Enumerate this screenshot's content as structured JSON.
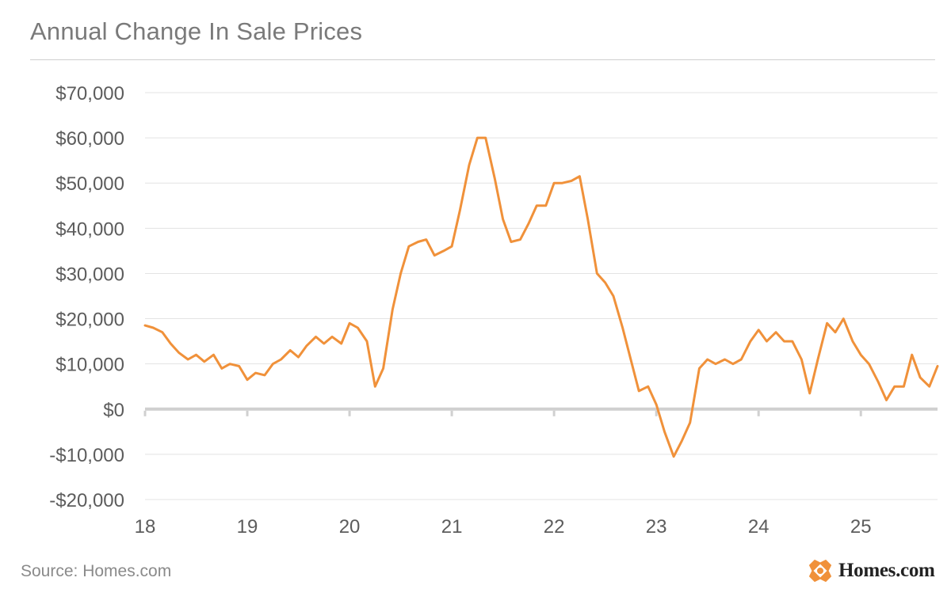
{
  "header": {
    "title": "Annual Change In Sale Prices"
  },
  "footer": {
    "source": "Source: Homes.com",
    "brand": "Homes.com"
  },
  "colors": {
    "line": "#f0913a",
    "grid": "#e3e3e3",
    "zero_line": "#d0d0d0",
    "text": "#5c5c5c",
    "logo": "#f0913a"
  },
  "icons": {
    "brand_logo": "homes-logo-icon"
  },
  "chart_data": {
    "type": "line",
    "title": "Annual Change In Sale Prices",
    "xlabel": "",
    "ylabel": "",
    "xlim": [
      18,
      25.75
    ],
    "ylim": [
      -20000,
      70000
    ],
    "grid": true,
    "x_tick_values": [
      18,
      19,
      20,
      21,
      22,
      23,
      24,
      25
    ],
    "x_tick_labels": [
      "18",
      "19",
      "20",
      "21",
      "22",
      "23",
      "24",
      "25"
    ],
    "y_tick_values": [
      70000,
      60000,
      50000,
      40000,
      30000,
      20000,
      10000,
      0,
      -10000,
      -20000
    ],
    "y_tick_labels": [
      "$70,000",
      "$60,000",
      "$50,000",
      "$40,000",
      "$30,000",
      "$20,000",
      "$10,000",
      "$0",
      "-$10,000",
      "-$20,000"
    ],
    "series": [
      {
        "name": "Annual change in sale price",
        "x": [
          18.0,
          18.08,
          18.17,
          18.25,
          18.33,
          18.42,
          18.5,
          18.58,
          18.67,
          18.75,
          18.83,
          18.92,
          19.0,
          19.08,
          19.17,
          19.25,
          19.33,
          19.42,
          19.5,
          19.58,
          19.67,
          19.75,
          19.83,
          19.92,
          20.0,
          20.08,
          20.17,
          20.25,
          20.33,
          20.42,
          20.5,
          20.58,
          20.67,
          20.75,
          20.83,
          20.92,
          21.0,
          21.08,
          21.17,
          21.25,
          21.33,
          21.42,
          21.5,
          21.58,
          21.67,
          21.75,
          21.83,
          21.92,
          22.0,
          22.08,
          22.17,
          22.25,
          22.33,
          22.42,
          22.5,
          22.58,
          22.67,
          22.75,
          22.83,
          22.92,
          23.0,
          23.08,
          23.17,
          23.25,
          23.33,
          23.42,
          23.5,
          23.58,
          23.67,
          23.75,
          23.83,
          23.92,
          24.0,
          24.08,
          24.17,
          24.25,
          24.33,
          24.42,
          24.5,
          24.58,
          24.67,
          24.75,
          24.83,
          24.92,
          25.0,
          25.08,
          25.17,
          25.25,
          25.33,
          25.42,
          25.5,
          25.58,
          25.67,
          25.75
        ],
        "values": [
          18500,
          18000,
          17000,
          14500,
          12500,
          11000,
          12000,
          10500,
          12000,
          9000,
          10000,
          9500,
          6500,
          8000,
          7500,
          10000,
          11000,
          13000,
          11500,
          14000,
          16000,
          14500,
          16000,
          14500,
          19000,
          18000,
          15000,
          5000,
          9000,
          22000,
          30000,
          36000,
          37000,
          37500,
          34000,
          35000,
          36000,
          44000,
          54000,
          60000,
          60000,
          51000,
          42000,
          37000,
          37500,
          41000,
          45000,
          45000,
          50000,
          50000,
          50500,
          51500,
          42000,
          30000,
          28000,
          25000,
          18000,
          11000,
          4000,
          5000,
          1000,
          -5000,
          -10500,
          -7000,
          -3000,
          9000,
          11000,
          10000,
          11000,
          10000,
          11000,
          15000,
          17500,
          15000,
          17000,
          15000,
          15000,
          11000,
          3500,
          11000,
          19000,
          17000,
          20000,
          15000,
          12000,
          10000,
          6000,
          2000,
          5000,
          5000,
          12000,
          7000,
          5000,
          9500
        ]
      }
    ]
  }
}
